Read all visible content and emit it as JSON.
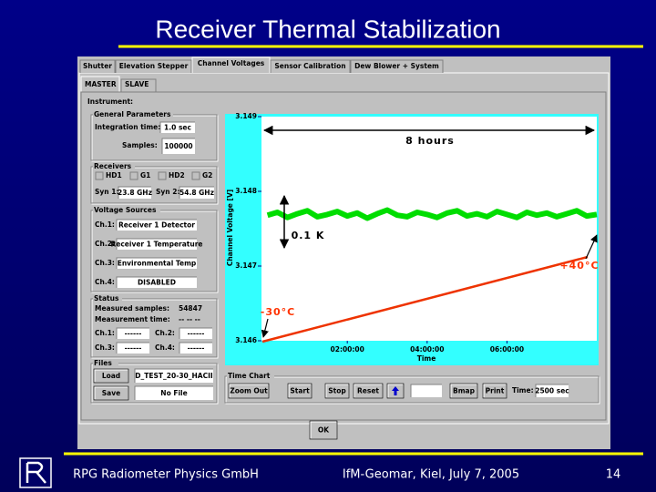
{
  "slide": {
    "title": "Receiver Thermal Stabilization",
    "footer": {
      "left": "RPG Radiometer Physics GmbH",
      "center": "IfM-Geomar, Kiel, July 7, 2005",
      "page": "14"
    }
  },
  "app": {
    "tabs": [
      "Shutter",
      "Elevation Stepper",
      "Channel Voltages",
      "Sensor Calibration",
      "Dew Blower + System"
    ],
    "subtabs": [
      "MASTER",
      "SLAVE"
    ],
    "instrument_label": "Instrument:",
    "general": {
      "title": "General Parameters",
      "integration_label": "Integration time:",
      "integration_value": "1.0 sec",
      "samples_label": "Samples:",
      "samples_value": "100000"
    },
    "receivers": {
      "title": "Receivers",
      "checks": [
        "HD1",
        "G1",
        "HD2",
        "G2"
      ],
      "syn1_label": "Syn 1:",
      "syn1_value": "23.8 GHz",
      "syn2_label": "Syn 2:",
      "syn2_value": "54.8 GHz"
    },
    "voltage_sources": {
      "title": "Voltage Sources",
      "channels": [
        {
          "label": "Ch.1:",
          "value": "Receiver 1 Detector"
        },
        {
          "label": "Ch.2:",
          "value": "Receiver 1 Temperature"
        },
        {
          "label": "Ch.3:",
          "value": "Environmental Temp"
        },
        {
          "label": "Ch.4:",
          "value": "DISABLED"
        }
      ]
    },
    "status": {
      "title": "Status",
      "samples_label": "Measured samples:",
      "samples_value": "54847",
      "time_label": "Measurement time:",
      "time_value": "-- -- --",
      "channels": [
        {
          "label": "Ch.1:",
          "value": "------"
        },
        {
          "label": "Ch.2:",
          "value": "------"
        },
        {
          "label": "Ch.3:",
          "value": "------"
        },
        {
          "label": "Ch.4:",
          "value": "------"
        }
      ]
    },
    "files": {
      "title": "Files",
      "load": "Load",
      "load_file": "D_TEST_20-30_HACII",
      "save": "Save",
      "save_file": "No File"
    },
    "time_chart": {
      "title": "Time Chart",
      "buttons": [
        "Zoom Out",
        "Start",
        "Stop",
        "Reset"
      ],
      "bmap": "Bmap",
      "print": "Print",
      "time_label": "Time:",
      "time_value": "2500 sec"
    },
    "ok": "OK"
  },
  "chart_data": {
    "type": "line",
    "y_label": "Channel Voltage [V]",
    "x_label": "Time",
    "xlim": [
      -0.15,
      8.25
    ],
    "xticks": [
      {
        "value": 2,
        "label": "02:00:00"
      },
      {
        "value": 4,
        "label": "04:00:00"
      },
      {
        "value": 6,
        "label": "06:00:00"
      }
    ],
    "ylim": [
      3.146,
      3.149
    ],
    "yticks": [
      3.146,
      3.147,
      3.148,
      3.149
    ],
    "x": [
      0,
      0.25,
      0.5,
      0.75,
      1,
      1.25,
      1.5,
      1.75,
      2,
      2.25,
      2.5,
      2.75,
      3,
      3.25,
      3.5,
      3.75,
      4,
      4.25,
      4.5,
      4.75,
      5,
      5.25,
      5.5,
      5.75,
      6,
      6.25,
      6.5,
      6.75,
      7,
      7.25,
      7.5,
      7.75,
      8,
      8.25
    ],
    "series": [
      {
        "color": "#00dd00",
        "values": [
          3.14768,
          3.14772,
          3.14765,
          3.1477,
          3.14774,
          3.14766,
          3.14769,
          3.14773,
          3.14767,
          3.14771,
          3.14764,
          3.1477,
          3.14775,
          3.14768,
          3.14766,
          3.14772,
          3.14769,
          3.14765,
          3.14771,
          3.14774,
          3.14767,
          3.1477,
          3.14766,
          3.14773,
          3.14769,
          3.14765,
          3.14772,
          3.14768,
          3.14771,
          3.14766,
          3.1477,
          3.14774,
          3.14767,
          3.14769
        ]
      }
    ],
    "annotations": [
      "8 hours",
      "0.1 K",
      "+40°C",
      "-30°C"
    ]
  }
}
